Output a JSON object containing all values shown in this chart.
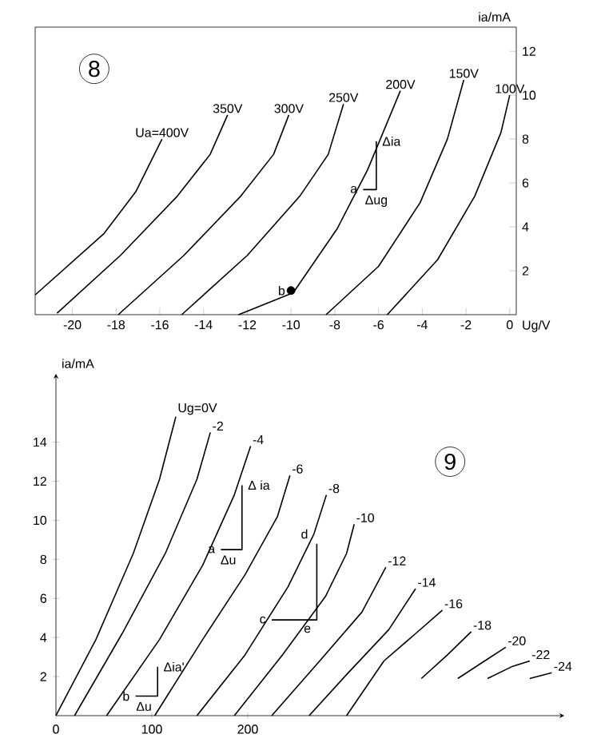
{
  "chart_data": [
    {
      "type": "line",
      "xlabel": "Ug/V",
      "ylabel": "ia/mA",
      "xlim": [
        -21.7,
        0.3
      ],
      "ylim": [
        0,
        13.1
      ],
      "xticks": [
        -20,
        -18,
        -16,
        -14,
        -12,
        -10,
        -8,
        -6,
        -4,
        -2,
        0
      ],
      "yticks": [
        2,
        4,
        6,
        8,
        10,
        12
      ],
      "series": [
        {
          "name": "Ua=400V",
          "color": "#000000",
          "x": [
            -21.7,
            -18.55,
            -17.1,
            -15.9
          ],
          "values": [
            0.9,
            3.7,
            5.6,
            8.0
          ]
        },
        {
          "name": "350V",
          "color": "#000000",
          "x": [
            -20.7,
            -17.8,
            -15.2,
            -13.7,
            -12.9
          ],
          "values": [
            0.07,
            2.7,
            5.4,
            7.3,
            9.1
          ]
        },
        {
          "name": "300V",
          "color": "#000000",
          "x": [
            -17.9,
            -14.9,
            -12.3,
            -10.8,
            -10.1
          ],
          "values": [
            0,
            2.7,
            5.4,
            7.3,
            9.1
          ]
        },
        {
          "name": "250V",
          "color": "#000000",
          "x": [
            -15.0,
            -12.0,
            -9.6,
            -8.3,
            -7.6
          ],
          "values": [
            0,
            2.7,
            5.4,
            7.3,
            9.6
          ]
        },
        {
          "name": "200V",
          "color": "#000000",
          "x": [
            -12.4,
            -9.9,
            -7.9,
            -6.5,
            -5.0
          ],
          "values": [
            0,
            1.0,
            3.9,
            6.6,
            10.2
          ]
        },
        {
          "name": "150V",
          "color": "#000000",
          "x": [
            -8.4,
            -6.0,
            -4.1,
            -2.85,
            -2.1
          ],
          "values": [
            0,
            2.2,
            5.1,
            8.0,
            10.7
          ]
        },
        {
          "name": "100V",
          "color": "#000000",
          "x": [
            -5.6,
            -3.3,
            -1.6,
            -0.4,
            0
          ],
          "values": [
            0,
            2.5,
            5.4,
            8.3,
            10.0
          ]
        },
        {
          "color": "#000000",
          "x": [
            -6.7,
            -6.1,
            -6.1
          ],
          "values": [
            5.7,
            5.7,
            7.9
          ]
        },
        {
          "type": "scatter",
          "color": "#000000",
          "x": [
            -10
          ],
          "values": [
            1.1
          ]
        }
      ],
      "annotations": [
        {
          "text": "8",
          "x": -19.0,
          "y": 11.2
        },
        {
          "text": "Δia",
          "x": -6.1,
          "y": 7.9
        },
        {
          "text": "Δug",
          "x": -6.1,
          "y": 5.7
        },
        {
          "text": "a",
          "x": -6.7,
          "y": 5.7
        },
        {
          "text": "b",
          "x": -10,
          "y": 1.1
        }
      ]
    },
    {
      "type": "line",
      "ylabel": "ia/mA",
      "xlim": [
        0,
        530
      ],
      "ylim": [
        0,
        17.5
      ],
      "xticks": [
        0,
        100,
        200
      ],
      "yticks": [
        2,
        4,
        6,
        8,
        10,
        12,
        14
      ],
      "series": [
        {
          "name": "Ug=0V",
          "color": "#000000",
          "x": [
            0,
            41.7,
            80.6,
            108,
            125
          ],
          "values": [
            0,
            3.9,
            8.3,
            12.1,
            15.3
          ]
        },
        {
          "name": "-2",
          "color": "#000000",
          "x": [
            19.4,
            69,
            114,
            147,
            161
          ],
          "values": [
            0,
            4.2,
            8.3,
            12.1,
            14.5
          ]
        },
        {
          "name": "-4",
          "color": "#000000",
          "x": [
            52.8,
            108,
            153,
            186,
            203
          ],
          "values": [
            0,
            3.9,
            7.7,
            11.3,
            13.8
          ]
        },
        {
          "name": "-6",
          "color": "#000000",
          "x": [
            103,
            153,
            197,
            231,
            244
          ],
          "values": [
            0,
            3.9,
            7.2,
            10.2,
            12.3
          ]
        },
        {
          "name": "-8",
          "color": "#000000",
          "x": [
            147,
            197,
            242,
            269,
            282
          ],
          "values": [
            0,
            3.1,
            6.6,
            9.3,
            11.3
          ]
        },
        {
          "name": "-10",
          "color": "#000000",
          "x": [
            186,
            236,
            281,
            303,
            311
          ],
          "values": [
            0,
            3.1,
            6.1,
            8.3,
            9.8
          ]
        },
        {
          "name": "-12",
          "color": "#000000",
          "x": [
            225,
            275,
            319,
            344
          ],
          "values": [
            0,
            2.8,
            5.3,
            7.6
          ]
        },
        {
          "name": "-14",
          "color": "#000000",
          "x": [
            264,
            303,
            347,
            375
          ],
          "values": [
            0,
            2.1,
            4.4,
            6.5
          ]
        },
        {
          "name": "-16",
          "color": "#000000",
          "x": [
            303,
            342,
            375,
            403
          ],
          "values": [
            0,
            2.8,
            4.2,
            5.4
          ]
        },
        {
          "name": "-18",
          "color": "#000000",
          "x": [
            381,
            408,
            433
          ],
          "values": [
            1.9,
            3.1,
            4.3
          ]
        },
        {
          "name": "-20",
          "color": "#000000",
          "x": [
            419,
            447,
            469
          ],
          "values": [
            1.9,
            2.8,
            3.5
          ]
        },
        {
          "name": "-22",
          "color": "#000000",
          "x": [
            450,
            475,
            494
          ],
          "values": [
            1.9,
            2.5,
            2.8
          ]
        },
        {
          "name": "-24",
          "color": "#000000",
          "x": [
            494,
            517
          ],
          "values": [
            1.9,
            2.2
          ]
        },
        {
          "color": "#000000",
          "x": [
            172,
            194,
            194
          ],
          "values": [
            8.5,
            8.5,
            11.8
          ]
        },
        {
          "color": "#000000",
          "x": [
            225,
            272,
            272
          ],
          "values": [
            4.9,
            4.9,
            8.8
          ]
        },
        {
          "color": "#000000",
          "x": [
            83,
            106,
            106
          ],
          "values": [
            1.0,
            1.0,
            2.5
          ]
        }
      ],
      "annotations": [
        {
          "text": "9",
          "x": 411,
          "y": 13.0
        },
        {
          "text": "Δ ia",
          "x": 194,
          "y": 11.8
        },
        {
          "text": "Δu",
          "x": 194,
          "y": 8.5
        },
        {
          "text": "a",
          "x": 172,
          "y": 8.5
        },
        {
          "text": "d",
          "x": 269,
          "y": 9.3
        },
        {
          "text": "c",
          "x": 225,
          "y": 4.9
        },
        {
          "text": "e",
          "x": 272,
          "y": 4.9
        },
        {
          "text": "b",
          "x": 83,
          "y": 1.0
        },
        {
          "text": "Δia'",
          "x": 106,
          "y": 2.5
        },
        {
          "text": "Δu",
          "x": 106,
          "y": 1.0
        }
      ]
    }
  ]
}
